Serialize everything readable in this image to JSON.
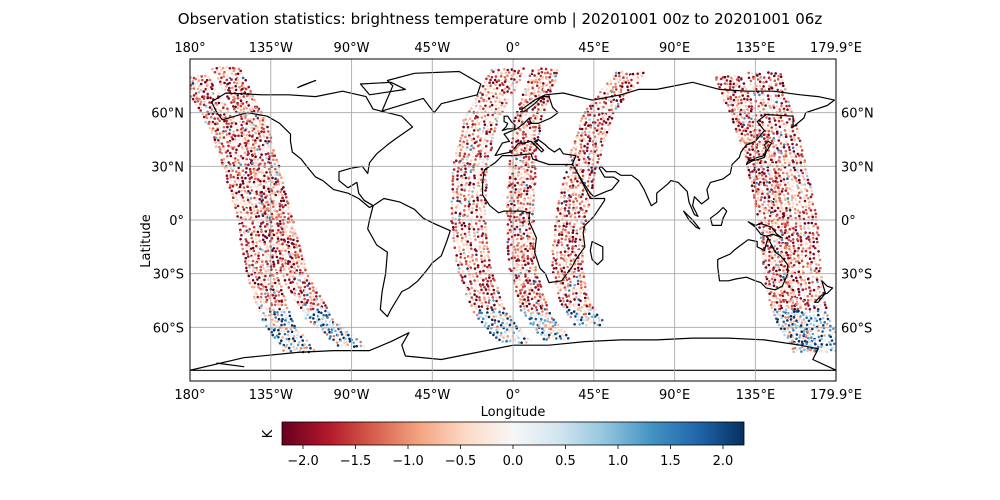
{
  "title": "Observation statistics: brightness temperature omb | 20201001 00z to 20201001 06z",
  "chart_data": {
    "type": "scatter",
    "projection": "plate-carree",
    "title": "Observation statistics: brightness temperature omb | 20201001 00z to 20201001 06z",
    "xlabel": "Longitude",
    "ylabel": "Latitude",
    "xlim": [
      -180,
      179.9
    ],
    "ylim": [
      -90,
      90
    ],
    "grid": true,
    "x_ticks": [
      {
        "value": -180,
        "label": "180°"
      },
      {
        "value": -135,
        "label": "135°W"
      },
      {
        "value": -90,
        "label": "90°W"
      },
      {
        "value": -45,
        "label": "45°W"
      },
      {
        "value": 0,
        "label": "0°"
      },
      {
        "value": 45,
        "label": "45°E"
      },
      {
        "value": 90,
        "label": "90°E"
      },
      {
        "value": 135,
        "label": "135°E"
      },
      {
        "value": 179.9,
        "label": "179.9°E"
      }
    ],
    "y_ticks": [
      {
        "value": 60,
        "label": "60°N"
      },
      {
        "value": 30,
        "label": "30°N"
      },
      {
        "value": 0,
        "label": "0°"
      },
      {
        "value": -30,
        "label": "30°S"
      },
      {
        "value": -60,
        "label": "60°S"
      }
    ],
    "colorbar": {
      "label": "K",
      "colormap": "RdBu",
      "vmin": -2.2,
      "vmax": 2.2,
      "ticks": [
        {
          "value": -2.0,
          "label": "−2.0"
        },
        {
          "value": -1.5,
          "label": "−1.5"
        },
        {
          "value": -1.0,
          "label": "−1.0"
        },
        {
          "value": -0.5,
          "label": "−0.5"
        },
        {
          "value": 0.0,
          "label": "0.0"
        },
        {
          "value": 0.5,
          "label": "0.5"
        },
        {
          "value": 1.0,
          "label": "1.0"
        },
        {
          "value": 1.5,
          "label": "1.5"
        },
        {
          "value": 2.0,
          "label": "2.0"
        }
      ],
      "colors": [
        "#67001f",
        "#b2182b",
        "#d6604d",
        "#f4a582",
        "#fddbc7",
        "#f7f7f7",
        "#d1e5f0",
        "#92c5de",
        "#4393c3",
        "#2166ac",
        "#053061"
      ]
    },
    "swaths": [
      {
        "name": "",
        "path": [
          [
            -178,
            80
          ],
          [
            -160,
            50
          ],
          [
            -150,
            20
          ],
          [
            -145,
            0
          ],
          [
            -140,
            -30
          ],
          [
            -132,
            -55
          ],
          [
            -118,
            -75
          ]
        ],
        "half_width_deg": 8
      },
      {
        "name": "",
        "path": [
          [
            -160,
            85
          ],
          [
            -145,
            55
          ],
          [
            -138,
            30
          ],
          [
            -130,
            0
          ],
          [
            -122,
            -30
          ],
          [
            -108,
            -55
          ],
          [
            -88,
            -72
          ]
        ],
        "half_width_deg": 7
      },
      {
        "name": "",
        "path": [
          [
            -3,
            84
          ],
          [
            -18,
            55
          ],
          [
            -24,
            30
          ],
          [
            -25,
            0
          ],
          [
            -22,
            -25
          ],
          [
            -14,
            -50
          ],
          [
            2,
            -70
          ]
        ],
        "half_width_deg": 9
      },
      {
        "name": "",
        "path": [
          [
            18,
            84
          ],
          [
            8,
            55
          ],
          [
            5,
            30
          ],
          [
            4,
            0
          ],
          [
            5,
            -25
          ],
          [
            12,
            -50
          ],
          [
            25,
            -68
          ]
        ],
        "half_width_deg": 7
      },
      {
        "name": "",
        "path": [
          [
            65,
            82
          ],
          [
            48,
            60
          ],
          [
            38,
            30
          ],
          [
            32,
            0
          ],
          [
            30,
            -25
          ],
          [
            34,
            -45
          ],
          [
            44,
            -60
          ]
        ],
        "half_width_deg": 8
      },
      {
        "name": "",
        "path": [
          [
            140,
            82
          ],
          [
            148,
            55
          ],
          [
            154,
            30
          ],
          [
            160,
            0
          ],
          [
            162,
            -30
          ],
          [
            166,
            -55
          ],
          [
            178,
            -75
          ]
        ],
        "half_width_deg": 9
      },
      {
        "name": "",
        "path": [
          [
            120,
            80
          ],
          [
            130,
            55
          ],
          [
            138,
            30
          ],
          [
            144,
            0
          ],
          [
            147,
            -30
          ],
          [
            153,
            -55
          ],
          [
            165,
            -75
          ]
        ],
        "half_width_deg": 7
      }
    ]
  }
}
